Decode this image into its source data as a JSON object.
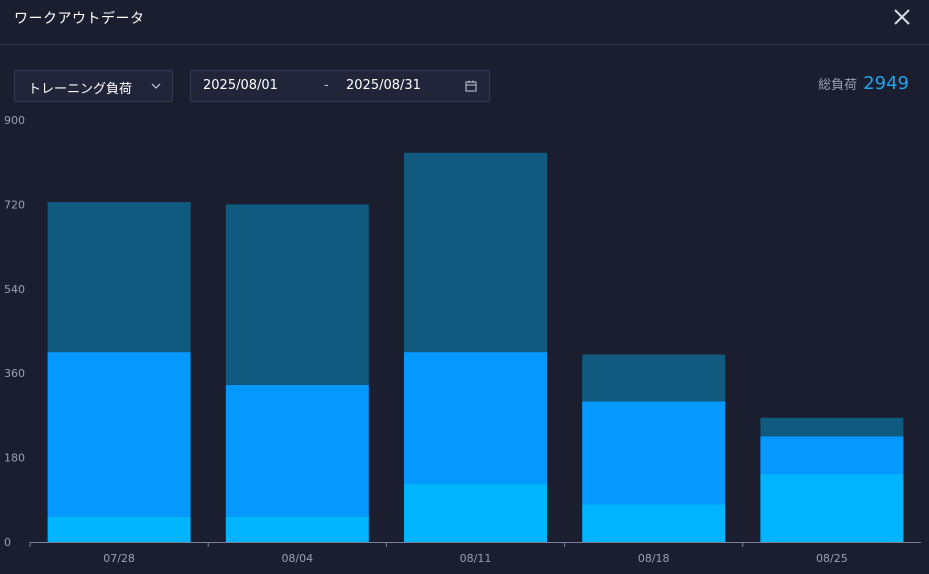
{
  "window": {
    "title": "ワークアウトデータ",
    "close_icon": "close-icon"
  },
  "toolbar": {
    "metric_select": {
      "value": "トレーニング負荷",
      "icon": "chevron-down-icon"
    },
    "date_range": {
      "start": "2025/08/01",
      "separator": "-",
      "end": "2025/08/31",
      "icon": "calendar-icon"
    },
    "total": {
      "label": "総負荷",
      "value": "2949"
    }
  },
  "colors": {
    "background": "#1a1e2f",
    "bar_top": "#0f5a7e",
    "bar_mid": "#0598ff",
    "bar_bottom": "#00b4ff",
    "accent": "#1ea7f0"
  },
  "chart_data": {
    "type": "bar",
    "stacked": true,
    "categories": [
      "07/28",
      "08/04",
      "08/11",
      "08/18",
      "08/25"
    ],
    "series": [
      {
        "color": "#00b4ff",
        "values": [
          55,
          55,
          125,
          80,
          145
        ]
      },
      {
        "color": "#0598ff",
        "values": [
          350,
          280,
          280,
          220,
          80
        ]
      },
      {
        "color": "#0f5a7e",
        "values": [
          320,
          385,
          425,
          100,
          40
        ]
      }
    ],
    "y_ticks": [
      "0",
      "180",
      "360",
      "540",
      "720",
      "900"
    ],
    "ylim": [
      0,
      900
    ],
    "grid": false,
    "legend": "none"
  }
}
